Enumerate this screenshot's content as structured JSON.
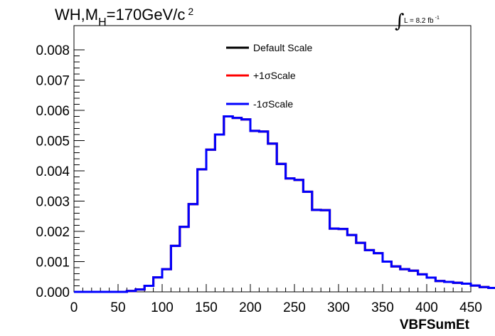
{
  "chart_data": {
    "type": "line",
    "title_main": "WH,M",
    "title_sub": "H",
    "title_value": "=170GeV/c",
    "title_sup": "2",
    "lumi_label": "L = 8.2 fb",
    "lumi_sup": "-1",
    "xlabel": "VBFSumEt",
    "xlim": [
      0,
      450
    ],
    "ylim": [
      0,
      0.0088
    ],
    "x_ticks": [
      "0",
      "50",
      "100",
      "150",
      "200",
      "250",
      "300",
      "350",
      "400",
      "450"
    ],
    "y_ticks": [
      "0.000",
      "0.001",
      "0.002",
      "0.003",
      "0.004",
      "0.005",
      "0.006",
      "0.007",
      "0.008"
    ],
    "bin_width": 10,
    "bin_edges_start": 0,
    "series": [
      {
        "name": "Default Scale",
        "color": "#000000",
        "values": [
          0,
          0,
          0,
          0,
          0,
          0,
          3e-05,
          8e-05,
          0.0002,
          0.00048,
          0.00075,
          0.00152,
          0.00215,
          0.0029,
          0.00405,
          0.0047,
          0.0052,
          0.0058,
          0.00575,
          0.0057,
          0.00532,
          0.0053,
          0.0049,
          0.00423,
          0.00375,
          0.0037,
          0.00331,
          0.00271,
          0.0027,
          0.00209,
          0.00208,
          0.00188,
          0.00162,
          0.00138,
          0.00128,
          0.001,
          0.00084,
          0.00075,
          0.0007,
          0.00058,
          0.00047,
          0.00036,
          0.00033,
          0.0003,
          0.00027,
          0.00021,
          0.00016,
          0.00013,
          0.00011,
          0.0001,
          9e-05,
          8e-05,
          8e-05,
          6e-05,
          6e-05,
          5e-05,
          4e-05,
          4e-05,
          3e-05,
          3e-05,
          3e-05,
          2e-05,
          2e-05,
          2e-05,
          2e-05,
          1e-05,
          1e-05,
          1e-05,
          1e-05,
          1e-05,
          1e-05,
          1e-05,
          1e-05,
          1e-05,
          1e-05,
          1e-05,
          1e-05,
          1e-05,
          1e-05,
          1e-05,
          1e-05,
          1e-05,
          1e-05,
          1e-05,
          1e-05,
          1e-05,
          1e-05,
          1e-05,
          1e-05,
          1e-05,
          1e-05,
          1e-05,
          1e-05,
          1e-05,
          1e-05,
          1e-05,
          1e-05,
          1e-05,
          1e-05,
          1e-05
        ]
      },
      {
        "name": "+1σScale",
        "color": "#ff0000",
        "values": [
          0,
          0,
          0,
          0,
          0,
          0,
          3e-05,
          8e-05,
          0.0002,
          0.00048,
          0.00075,
          0.00152,
          0.00215,
          0.0029,
          0.00405,
          0.0047,
          0.0052,
          0.0058,
          0.00575,
          0.0057,
          0.00532,
          0.0053,
          0.0049,
          0.00423,
          0.00375,
          0.0037,
          0.00331,
          0.00271,
          0.0027,
          0.00209,
          0.00208,
          0.00188,
          0.00162,
          0.00138,
          0.00128,
          0.001,
          0.00084,
          0.00075,
          0.0007,
          0.00058,
          0.00047,
          0.00036,
          0.00033,
          0.0003,
          0.00027,
          0.00021,
          0.00016,
          0.00013,
          0.00011,
          0.0001,
          9e-05,
          8e-05,
          8e-05,
          6e-05,
          6e-05,
          5e-05,
          4e-05,
          4e-05,
          3e-05,
          3e-05,
          3e-05,
          2e-05,
          2e-05,
          2e-05,
          2e-05,
          1e-05,
          1e-05,
          1e-05,
          1e-05,
          1e-05,
          1e-05,
          1e-05,
          1e-05,
          1e-05,
          1e-05,
          1e-05,
          1e-05,
          1e-05,
          1e-05,
          1e-05,
          1e-05,
          1e-05,
          1e-05,
          1e-05,
          1e-05,
          1e-05,
          1e-05,
          1e-05,
          1e-05,
          1e-05,
          1e-05,
          1e-05,
          1e-05,
          1e-05,
          1e-05,
          1e-05,
          1e-05,
          1e-05,
          1e-05,
          1e-05
        ]
      },
      {
        "name": "-1σScale",
        "color": "#0000ff",
        "values": [
          0,
          0,
          0,
          0,
          0,
          0,
          3e-05,
          8e-05,
          0.0002,
          0.00048,
          0.00075,
          0.00152,
          0.00215,
          0.0029,
          0.00405,
          0.0047,
          0.0052,
          0.0058,
          0.00575,
          0.0057,
          0.00532,
          0.0053,
          0.0049,
          0.00423,
          0.00375,
          0.0037,
          0.00331,
          0.00271,
          0.0027,
          0.00209,
          0.00208,
          0.00188,
          0.00162,
          0.00138,
          0.00128,
          0.001,
          0.00084,
          0.00075,
          0.0007,
          0.00058,
          0.00047,
          0.00036,
          0.00033,
          0.0003,
          0.00027,
          0.00021,
          0.00016,
          0.00013,
          0.00011,
          0.0001,
          9e-05,
          8e-05,
          8e-05,
          6e-05,
          6e-05,
          5e-05,
          4e-05,
          4e-05,
          3e-05,
          3e-05,
          3e-05,
          2e-05,
          2e-05,
          2e-05,
          2e-05,
          1e-05,
          1e-05,
          1e-05,
          1e-05,
          1e-05,
          1e-05,
          1e-05,
          1e-05,
          1e-05,
          1e-05,
          1e-05,
          1e-05,
          1e-05,
          1e-05,
          1e-05,
          1e-05,
          1e-05,
          1e-05,
          1e-05,
          1e-05,
          1e-05,
          1e-05,
          1e-05,
          1e-05,
          1e-05,
          1e-05,
          1e-05,
          1e-05,
          1e-05,
          1e-05,
          1e-05,
          1e-05,
          1e-05,
          1e-05,
          1e-05
        ]
      }
    ],
    "legend_placement": "top-center",
    "grid": false
  }
}
